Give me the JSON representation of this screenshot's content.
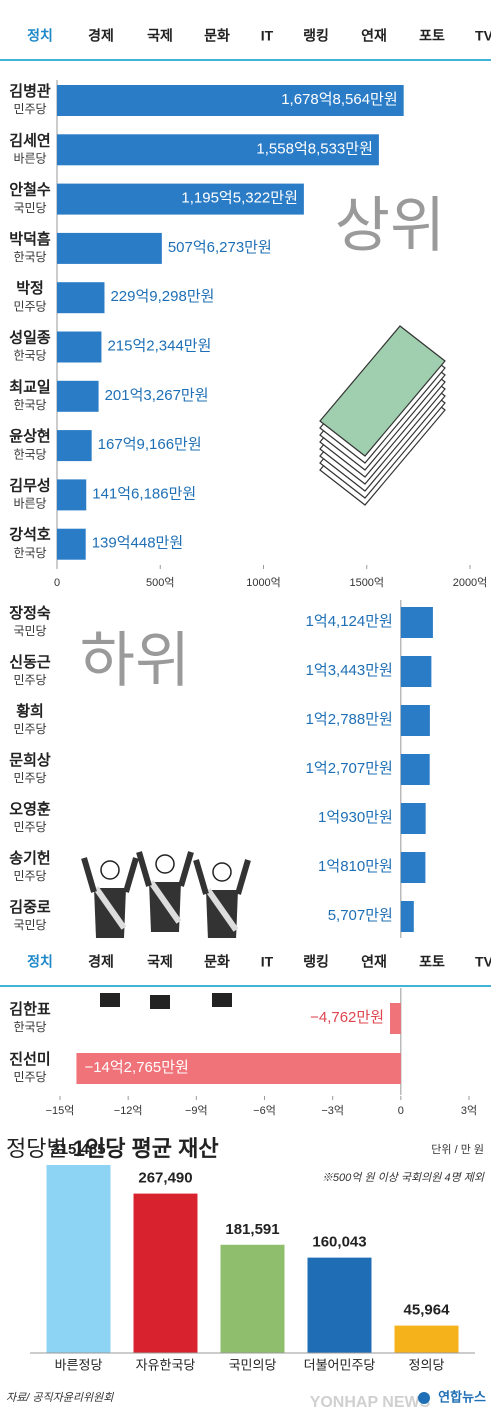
{
  "nav": {
    "items": [
      "정치",
      "경제",
      "국제",
      "문화",
      "IT",
      "랭킹",
      "연재",
      "포토",
      "TV"
    ],
    "active": 0,
    "color": "#1e88c8"
  },
  "chart_data": [
    {
      "type": "hbar",
      "label": "상위",
      "color": "#2b7cc7",
      "categories": [
        "김병관",
        "김세연",
        "안철수",
        "박덕흠",
        "박정",
        "성일종",
        "최교일",
        "윤상현",
        "김무성",
        "강석호"
      ],
      "parties": [
        "민주당",
        "바른당",
        "국민당",
        "한국당",
        "민주당",
        "한국당",
        "한국당",
        "한국당",
        "바른당",
        "한국당"
      ],
      "values": [
        1678.8564,
        1558.8533,
        1195.5322,
        507.6273,
        229.9298,
        215.2344,
        201.3267,
        167.9166,
        141.6186,
        139.0448
      ],
      "value_labels": [
        "1,678억8,564만원",
        "1,558억8,533만원",
        "1,195억5,322만원",
        "507억6,273만원",
        "229억9,298만원",
        "215억2,344만원",
        "201억3,267만원",
        "167억9,166만원",
        "141억6,186만원",
        "139억448만원"
      ],
      "xlim": [
        0,
        2000
      ],
      "xticks": [
        0,
        {
          "value": 500,
          "label": "500억"
        },
        {
          "value": 1000,
          "label": "1000억"
        },
        {
          "value": 1500,
          "label": "1500억"
        },
        {
          "value": 2000,
          "label": "2000억"
        }
      ]
    },
    {
      "type": "hbar",
      "label": "하위",
      "color": "#2b7cc7",
      "negative_color": "#f0737a",
      "categories": [
        "장정숙",
        "신동근",
        "황희",
        "문희상",
        "오영훈",
        "송기헌",
        "김중로",
        "김한표",
        "진선미"
      ],
      "parties": [
        "국민당",
        "민주당",
        "민주당",
        "민주당",
        "민주당",
        "민주당",
        "국민당",
        "한국당",
        "민주당"
      ],
      "values": [
        1.4124,
        1.3443,
        1.2788,
        1.2707,
        1.093,
        1.081,
        0.5707,
        -0.4762,
        -14.2765
      ],
      "value_labels": [
        "1억4,124만원",
        "1억3,443만원",
        "1억2,788만원",
        "1억2,707만원",
        "1억930만원",
        "1억810만원",
        "5,707만원",
        "−4,762만원",
        "−14억2,765만원"
      ],
      "xlim": [
        -15,
        3
      ],
      "xticks": [
        {
          "value": -15,
          "label": "−15억"
        },
        {
          "value": -12,
          "label": "−12억"
        },
        {
          "value": -9,
          "label": "−9억"
        },
        {
          "value": -6,
          "label": "−6억"
        },
        {
          "value": -3,
          "label": "−3억"
        },
        0,
        {
          "value": 3,
          "label": "3억"
        }
      ]
    },
    {
      "type": "bar",
      "title_parts": [
        "정당별",
        "1인당 평균 재산"
      ],
      "unit": "단위 / 만 원",
      "note": "※500억 원 이상 국회의원 4명 제외",
      "categories": [
        "바른정당",
        "자유한국당",
        "국민의당",
        "더불어민주당",
        "정의당"
      ],
      "values": [
        315465,
        267490,
        181591,
        160043,
        45964
      ],
      "value_labels": [
        "315,465",
        "267,490",
        "181,591",
        "160,043",
        "45,964"
      ],
      "colors": [
        "#8dd3f3",
        "#d8232f",
        "#8fbe6c",
        "#1f6db5",
        "#f5b21a"
      ]
    }
  ],
  "footer": {
    "source": "자료/ 공직자윤리위원회",
    "watermark": "YONHAP NEWS",
    "logo": "연합뉴스"
  }
}
